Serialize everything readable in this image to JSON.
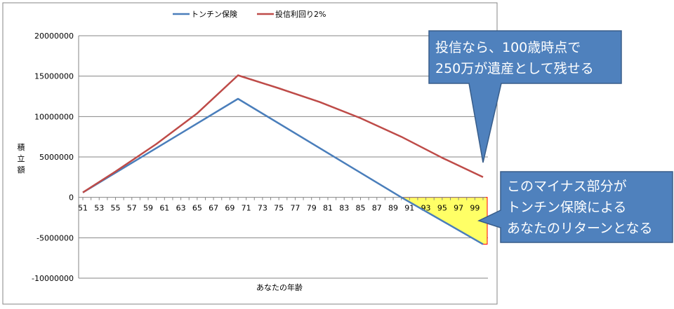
{
  "chart_data": {
    "type": "line",
    "xlabel": "あなたの年齢",
    "ylabel": "積立額",
    "ylim": [
      -10000000,
      20000000
    ],
    "yticks": [
      -10000000,
      -5000000,
      0,
      5000000,
      10000000,
      15000000,
      20000000
    ],
    "ytick_labels": [
      "-10000000",
      "-5000000",
      "0",
      "5000000",
      "10000000",
      "15000000",
      "20000000"
    ],
    "xlim": [
      51,
      100
    ],
    "xtick_labels": [
      "51",
      "53",
      "55",
      "57",
      "59",
      "61",
      "63",
      "65",
      "67",
      "69",
      "71",
      "73",
      "75",
      "77",
      "79",
      "81",
      "83",
      "85",
      "87",
      "89",
      "91",
      "93",
      "95",
      "97",
      "99"
    ],
    "grid": "horizontal",
    "legend_position": "top",
    "series": [
      {
        "name": "トンチン保険",
        "color": "#4a7ebb",
        "points": [
          [
            51,
            600000
          ],
          [
            70,
            12200000
          ],
          [
            90,
            0
          ],
          [
            100,
            -5800000
          ]
        ]
      },
      {
        "name": "投信利回り2%",
        "color": "#be4b48",
        "points": [
          [
            51,
            600000
          ],
          [
            55,
            3200000
          ],
          [
            60,
            6600000
          ],
          [
            65,
            10400000
          ],
          [
            70,
            15100000
          ],
          [
            75,
            13500000
          ],
          [
            80,
            11800000
          ],
          [
            85,
            9800000
          ],
          [
            90,
            7500000
          ],
          [
            95,
            4900000
          ],
          [
            100,
            2500000
          ]
        ]
      }
    ]
  },
  "callouts": {
    "top": [
      "投信なら、100歳時点で",
      "250万が遺産として残せる"
    ],
    "bottom": [
      "このマイナス部分が",
      "トンチン保険による",
      "あなたのリターンとなる"
    ]
  },
  "colors": {
    "callout_fill": "#4f81bd",
    "callout_stroke": "#385d8a",
    "highlight_fill": "#ffff66",
    "highlight_stroke": "#ff0000",
    "gridline": "#868686"
  }
}
